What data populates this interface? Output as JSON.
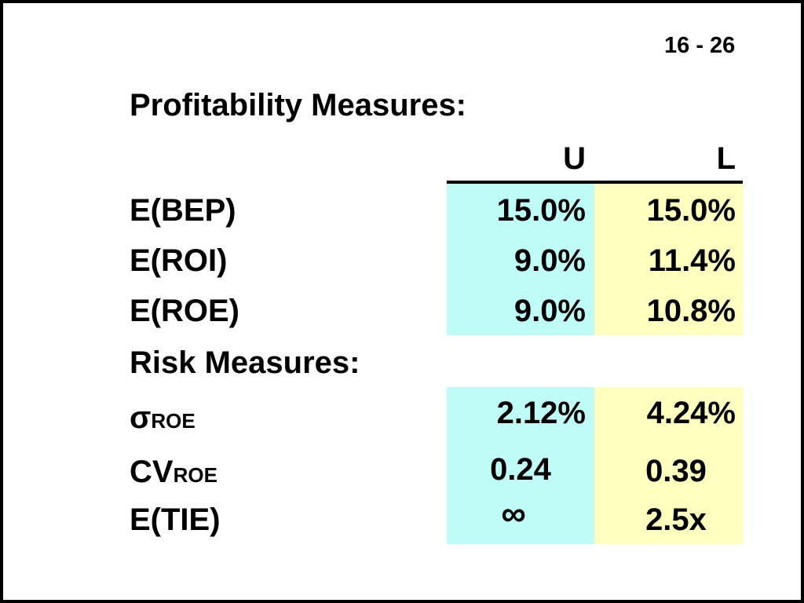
{
  "colors": {
    "u_column_bg": "#BFFCF8",
    "l_column_bg": "#FFFFC0",
    "border": "#000000"
  },
  "page_number": "16 - 26",
  "profitability": {
    "heading": "Profitability Measures:",
    "columns": [
      "U",
      "L"
    ],
    "rows": [
      {
        "label": "E(BEP)",
        "u": "15.0%",
        "l": "15.0%"
      },
      {
        "label": "E(ROI)",
        "u": "9.0%",
        "l": "11.4%"
      },
      {
        "label": "E(ROE)",
        "u": "9.0%",
        "l": "10.8%"
      }
    ]
  },
  "risk": {
    "heading": "Risk Measures:",
    "rows": [
      {
        "symbol": "σ",
        "subscript": "ROE",
        "u": "2.12%",
        "l": "4.24%"
      },
      {
        "symbol": "CV",
        "subscript": "ROE",
        "u": "0.24",
        "l": "0.39"
      },
      {
        "label": "E(TIE)",
        "u": "∞",
        "l": "2.5x"
      }
    ]
  }
}
